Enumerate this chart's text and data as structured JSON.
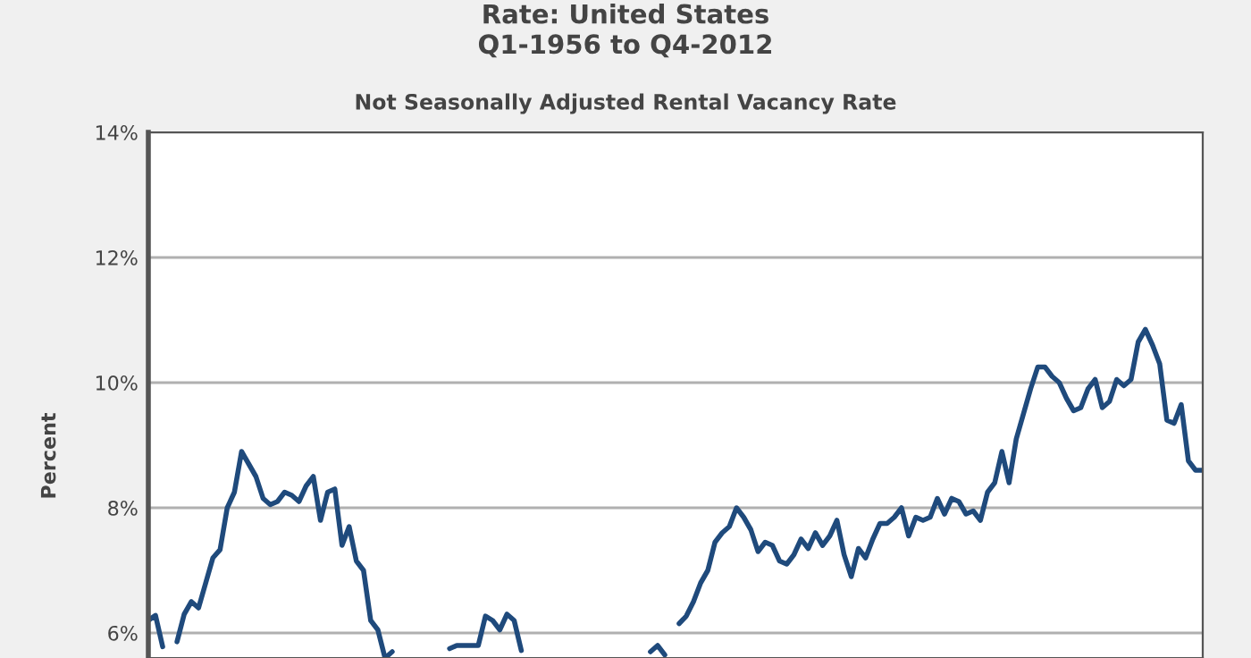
{
  "chart_data": {
    "type": "line",
    "title": "Rate: United States\nQ1-1956 to Q4-2012",
    "subtitle": "Not Seasonally Adjusted Rental Vacancy Rate",
    "ylabel": "Percent",
    "categories": [
      null,
      null,
      null,
      null,
      null,
      null,
      null,
      null,
      null,
      null,
      null,
      null,
      null,
      null,
      null,
      null,
      null,
      null,
      null,
      null,
      null,
      null,
      null,
      null,
      null,
      null,
      null,
      null,
      null,
      null,
      null,
      null,
      null,
      null,
      null,
      null,
      null,
      null,
      null,
      null,
      null,
      null,
      null,
      null,
      null,
      null,
      null,
      null,
      null,
      null,
      null,
      null,
      null,
      null,
      null,
      null,
      null,
      null,
      null,
      null,
      null,
      null,
      null,
      null,
      null,
      null,
      null,
      null,
      null,
      null,
      null,
      null,
      null,
      null,
      null,
      null,
      null,
      null,
      null,
      null,
      null,
      null,
      null,
      null,
      null,
      null,
      null,
      null,
      null,
      null,
      null,
      null,
      null,
      null,
      null,
      null,
      null,
      null,
      null,
      null,
      null,
      null,
      null,
      null,
      null,
      null,
      null,
      null,
      null,
      null,
      null,
      null,
      null,
      null,
      null,
      null,
      null,
      null,
      null,
      null,
      null,
      null,
      null,
      null,
      null,
      null,
      null,
      null,
      null,
      null,
      null,
      null,
      null,
      null,
      null,
      null,
      null,
      null,
      null,
      null,
      null,
      null,
      null,
      null,
      null,
      null,
      null,
      null
    ],
    "series": [
      {
        "color": "#1f4a7c",
        "values": [
          6.2,
          6.28,
          5.78,
          null,
          5.86,
          6.3,
          6.5,
          6.4,
          6.8,
          7.2,
          7.33,
          8.0,
          8.25,
          8.9,
          8.7,
          8.5,
          8.15,
          8.05,
          8.1,
          8.25,
          8.2,
          8.1,
          8.35,
          8.5,
          7.8,
          8.25,
          8.3,
          7.4,
          7.7,
          7.15,
          7.0,
          6.2,
          6.05,
          5.6,
          5.7,
          null,
          null,
          null,
          null,
          null,
          null,
          null,
          5.75,
          5.8,
          5.8,
          5.8,
          5.8,
          6.27,
          6.2,
          6.05,
          6.3,
          6.2,
          5.72,
          null,
          null,
          null,
          null,
          null,
          null,
          null,
          null,
          null,
          null,
          null,
          null,
          null,
          null,
          null,
          null,
          null,
          5.7,
          5.8,
          5.65,
          null,
          6.15,
          6.27,
          6.5,
          6.8,
          7.0,
          7.45,
          7.6,
          7.7,
          8.0,
          7.85,
          7.65,
          7.3,
          7.45,
          7.4,
          7.15,
          7.1,
          7.25,
          7.5,
          7.35,
          7.6,
          7.4,
          7.55,
          7.8,
          7.25,
          6.9,
          7.35,
          7.2,
          7.5,
          7.75,
          7.75,
          7.85,
          8.0,
          7.55,
          7.85,
          7.8,
          7.85,
          8.15,
          7.9,
          8.15,
          8.1,
          7.9,
          7.95,
          7.8,
          8.25,
          8.4,
          8.9,
          8.4,
          9.1,
          9.5,
          9.9,
          10.25,
          10.25,
          10.1,
          10.0,
          9.75,
          9.55,
          9.6,
          9.9,
          10.05,
          9.6,
          9.7,
          10.05,
          9.95,
          10.05,
          10.65,
          10.85,
          10.6,
          10.3,
          9.4,
          9.35,
          9.65,
          8.75,
          8.6,
          8.6
        ]
      }
    ],
    "ylim": [
      5.6,
      14
    ],
    "yticks": [
      {
        "value": 6,
        "label": "6%"
      },
      {
        "value": 8,
        "label": "8%"
      },
      {
        "value": 10,
        "label": "10%"
      },
      {
        "value": 12,
        "label": "12%"
      },
      {
        "value": 14,
        "label": "14%"
      }
    ],
    "grid": "y",
    "tick_labels": "y",
    "marker": "none",
    "line_style": "solid"
  }
}
